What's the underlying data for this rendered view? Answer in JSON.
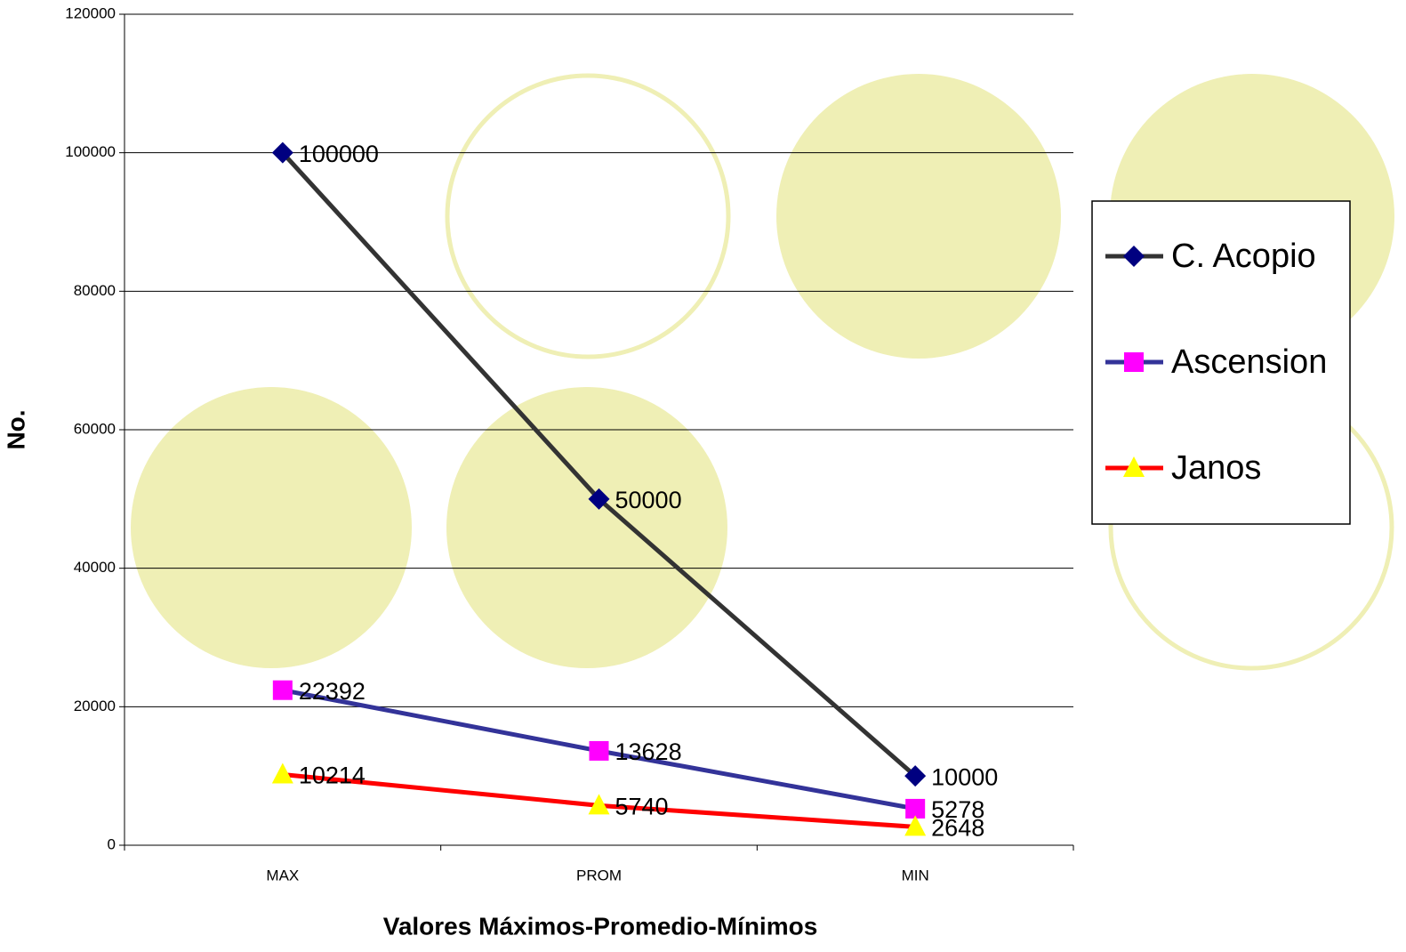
{
  "chart_data": {
    "type": "line",
    "x_label": "Valores Máximos-Promedio-Mínimos",
    "y_label": "No.",
    "categories": [
      "MAX",
      "PROM",
      "MIN"
    ],
    "series": [
      {
        "name": "C. Acopio",
        "color": "#333333",
        "marker_color": "#000080",
        "marker": "diamond",
        "values": [
          100000,
          50000,
          10000
        ]
      },
      {
        "name": "Ascension",
        "color": "#333399",
        "marker_color": "#ff00ff",
        "marker": "square",
        "values": [
          22392,
          13628,
          5278
        ]
      },
      {
        "name": "Janos",
        "color": "#ff0000",
        "marker_color": "#ffff00",
        "marker": "triangle",
        "values": [
          10214,
          5740,
          2648
        ]
      }
    ],
    "ylim": [
      0,
      120000
    ],
    "yticks": [
      0,
      20000,
      40000,
      60000,
      80000,
      100000,
      120000
    ],
    "grid": true,
    "legend": "right"
  }
}
